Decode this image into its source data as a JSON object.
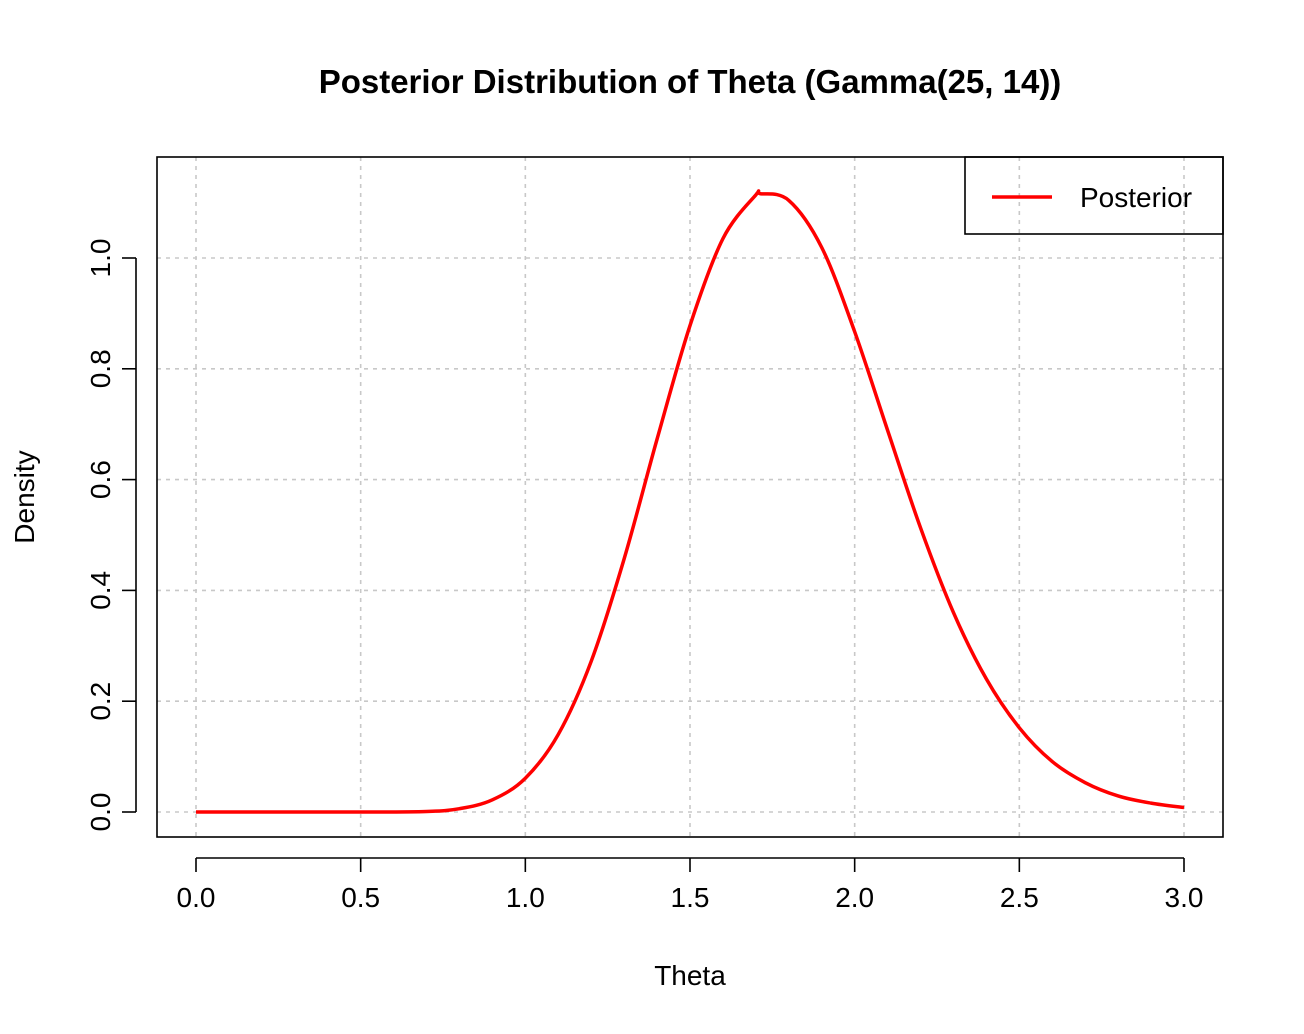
{
  "chart_data": {
    "type": "line",
    "title": "Posterior Distribution of Theta (Gamma(25, 14))",
    "xlabel": "Theta",
    "ylabel": "Density",
    "xlim": [
      0,
      3
    ],
    "ylim": [
      0,
      1.14
    ],
    "x_ticks": [
      "0.0",
      "0.5",
      "1.0",
      "1.5",
      "2.0",
      "2.5",
      "3.0"
    ],
    "y_ticks": [
      "0.0",
      "0.2",
      "0.4",
      "0.6",
      "0.8",
      "1.0"
    ],
    "grid": true,
    "legend_position": "top-right",
    "series": [
      {
        "name": "Posterior",
        "color": "#ff0000",
        "x": [
          0.0,
          0.5,
          0.7,
          0.8,
          0.9,
          1.0,
          1.1,
          1.2,
          1.3,
          1.4,
          1.5,
          1.6,
          1.7,
          1.714,
          1.8,
          1.9,
          2.0,
          2.1,
          2.2,
          2.3,
          2.4,
          2.5,
          2.6,
          2.7,
          2.8,
          2.9,
          3.0
        ],
        "y": [
          0.0,
          0.0,
          0.001,
          0.006,
          0.022,
          0.061,
          0.14,
          0.272,
          0.457,
          0.673,
          0.878,
          1.035,
          1.114,
          1.116,
          1.104,
          1.019,
          0.867,
          0.689,
          0.513,
          0.36,
          0.24,
          0.152,
          0.091,
          0.053,
          0.029,
          0.016,
          0.008
        ]
      }
    ]
  }
}
